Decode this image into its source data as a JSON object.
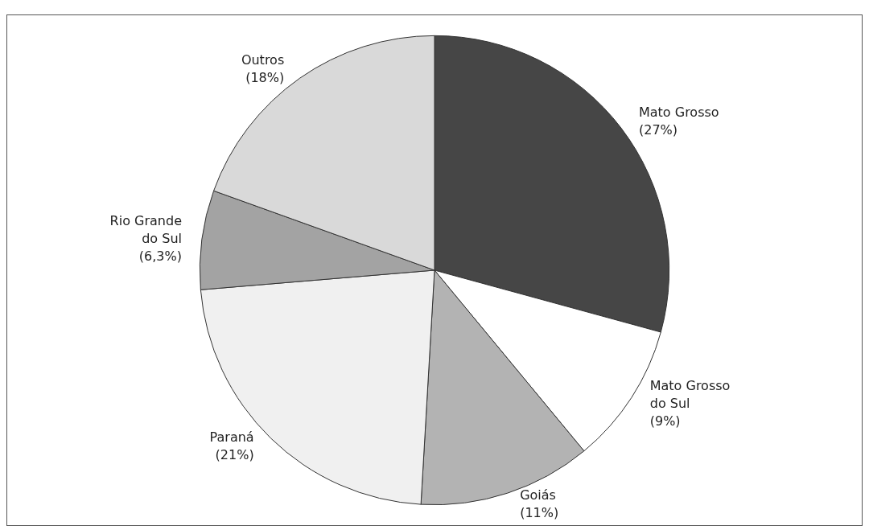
{
  "chart_data": {
    "type": "pie",
    "categories": [
      "Mato Grosso",
      "Mato Grosso do Sul",
      "Goiás",
      "Paraná",
      "Rio Grande do Sul",
      "Outros"
    ],
    "values": [
      27,
      9,
      11,
      21,
      6.3,
      18
    ],
    "value_labels": [
      "(27%)",
      "(9%)",
      "(11%)",
      "(21%)",
      "(6,3%)",
      "(18%)"
    ],
    "colors": [
      "#464646",
      "#ffffff",
      "#b3b3b3",
      "#f0f0f0",
      "#a3a3a3",
      "#d9d9d9"
    ],
    "legend": false
  }
}
